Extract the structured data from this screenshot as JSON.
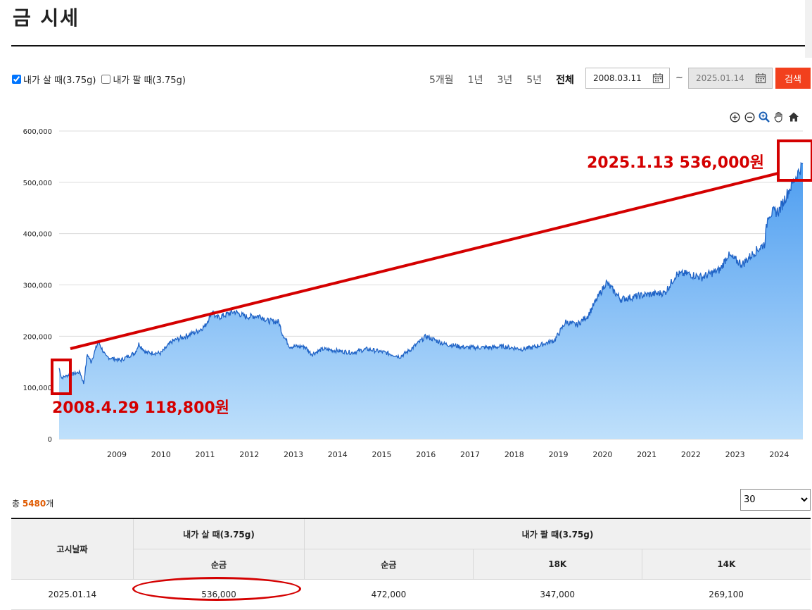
{
  "page": {
    "title": "금 시세"
  },
  "filters": {
    "buy_label": "내가 살 때(3.75g)",
    "buy_checked": true,
    "sell_label": "내가 팔 때(3.75g)",
    "sell_checked": false,
    "periods": [
      "5개월",
      "1년",
      "3년",
      "5년",
      "전체"
    ],
    "active_period": "전체",
    "start_date": "2008.03.11",
    "end_date": "2025.01.14",
    "tilde": "~",
    "search_label": "검색"
  },
  "toolbar": [
    "zoom-in-icon",
    "zoom-out-icon",
    "magnify-icon",
    "pan-hand-icon",
    "home-icon"
  ],
  "chart_data": {
    "type": "area",
    "title": "",
    "xlabel": "",
    "ylabel": "",
    "ylim": [
      0,
      600000
    ],
    "yticks": [
      0,
      100000,
      200000,
      300000,
      400000,
      500000,
      600000
    ],
    "ytick_labels": [
      "0",
      "100,000",
      "200,000",
      "300,000",
      "400,000",
      "500,000",
      "600,000"
    ],
    "xticks": [
      "2009",
      "2010",
      "2011",
      "2012",
      "2013",
      "2014",
      "2015",
      "2016",
      "2017",
      "2018",
      "2019",
      "2020",
      "2021",
      "2022",
      "2023",
      "2024"
    ],
    "grid": true,
    "series": [
      {
        "values": [
          {
            "x": "2008.03",
            "y": 138000
          },
          {
            "x": "2008.04",
            "y": 118800
          },
          {
            "x": "2008.06",
            "y": 125000
          },
          {
            "x": "2008.09",
            "y": 130000
          },
          {
            "x": "2008.10",
            "y": 108000
          },
          {
            "x": "2008.11",
            "y": 165000
          },
          {
            "x": "2008.12",
            "y": 150000
          },
          {
            "x": "2009.02",
            "y": 190000
          },
          {
            "x": "2009.04",
            "y": 160000
          },
          {
            "x": "2009.08",
            "y": 153000
          },
          {
            "x": "2009.12",
            "y": 168000
          },
          {
            "x": "2010.01",
            "y": 185000
          },
          {
            "x": "2010.03",
            "y": 168000
          },
          {
            "x": "2010.07",
            "y": 167000
          },
          {
            "x": "2010.10",
            "y": 190000
          },
          {
            "x": "2011.01",
            "y": 198000
          },
          {
            "x": "2011.05",
            "y": 210000
          },
          {
            "x": "2011.07",
            "y": 220000
          },
          {
            "x": "2011.09",
            "y": 250000
          },
          {
            "x": "2011.10",
            "y": 235000
          },
          {
            "x": "2012.03",
            "y": 248000
          },
          {
            "x": "2012.06",
            "y": 238000
          },
          {
            "x": "2012.10",
            "y": 240000
          },
          {
            "x": "2012.12",
            "y": 230000
          },
          {
            "x": "2013.03",
            "y": 228000
          },
          {
            "x": "2013.04",
            "y": 205000
          },
          {
            "x": "2013.06",
            "y": 180000
          },
          {
            "x": "2013.10",
            "y": 180000
          },
          {
            "x": "2013.12",
            "y": 165000
          },
          {
            "x": "2014.03",
            "y": 175000
          },
          {
            "x": "2014.11",
            "y": 168000
          },
          {
            "x": "2015.03",
            "y": 175000
          },
          {
            "x": "2015.08",
            "y": 168000
          },
          {
            "x": "2015.12",
            "y": 160000
          },
          {
            "x": "2016.03",
            "y": 175000
          },
          {
            "x": "2016.07",
            "y": 200000
          },
          {
            "x": "2016.12",
            "y": 185000
          },
          {
            "x": "2017.06",
            "y": 178000
          },
          {
            "x": "2017.12",
            "y": 178000
          },
          {
            "x": "2018.04",
            "y": 180000
          },
          {
            "x": "2018.09",
            "y": 175000
          },
          {
            "x": "2018.12",
            "y": 178000
          },
          {
            "x": "2019.06",
            "y": 192000
          },
          {
            "x": "2019.09",
            "y": 228000
          },
          {
            "x": "2019.12",
            "y": 222000
          },
          {
            "x": "2020.03",
            "y": 240000
          },
          {
            "x": "2020.08",
            "y": 305000
          },
          {
            "x": "2020.12",
            "y": 272000
          },
          {
            "x": "2021.06",
            "y": 280000
          },
          {
            "x": "2021.12",
            "y": 285000
          },
          {
            "x": "2022.03",
            "y": 320000
          },
          {
            "x": "2022.06",
            "y": 322000
          },
          {
            "x": "2022.10",
            "y": 315000
          },
          {
            "x": "2023.03",
            "y": 330000
          },
          {
            "x": "2023.05",
            "y": 358000
          },
          {
            "x": "2023.09",
            "y": 340000
          },
          {
            "x": "2023.12",
            "y": 362000
          },
          {
            "x": "2024.03",
            "y": 380000
          },
          {
            "x": "2024.04",
            "y": 438000
          },
          {
            "x": "2024.07",
            "y": 445000
          },
          {
            "x": "2024.10",
            "y": 490000
          },
          {
            "x": "2025.01",
            "y": 536000
          }
        ]
      }
    ],
    "annotations": [
      {
        "text": "2025.1.13 536,000원",
        "x": "2025.01",
        "y": 536000
      },
      {
        "text": "2008.4.29 118,800원",
        "x": "2008.04",
        "y": 118800
      }
    ]
  },
  "summary": {
    "prefix": "총 ",
    "count": "5480",
    "suffix": "개"
  },
  "page_size": {
    "selected": "30"
  },
  "table": {
    "col_date": "고시날짜",
    "group_buy": "내가 살 때(3.75g)",
    "group_sell": "내가 팔 때(3.75g)",
    "sub_buy_pure": "순금",
    "sub_sell_pure": "순금",
    "sub_18k": "18K",
    "sub_14k": "14K",
    "rows": [
      {
        "date": "2025.01.14",
        "buy_pure": "536,000",
        "sell_pure": "472,000",
        "sell_18k": "347,000",
        "sell_14k": "269,100"
      }
    ]
  },
  "colors": {
    "accent": "#f2401d",
    "line": "#1f63c6",
    "annotation": "#d40000",
    "count": "#e05a00"
  }
}
